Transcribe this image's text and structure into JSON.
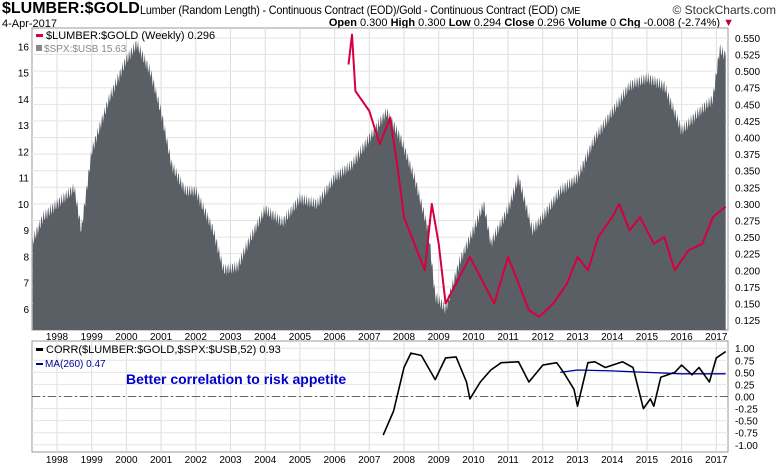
{
  "header": {
    "symbol": "$LUMBER:$GOLD",
    "description": "Lumber (Random Length) - Continuous Contract (EOD)/Gold - Continuous Contract (EOD)",
    "exchange": "CME",
    "brand": "© StockCharts.com",
    "date": "4-Apr-2017",
    "quote": {
      "open_label": "Open",
      "open": "0.300",
      "high_label": "High",
      "high": "0.300",
      "low_label": "Low",
      "low": "0.294",
      "close_label": "Close",
      "close": "0.296",
      "volume_label": "Volume",
      "volume": "0",
      "chg_label": "Chg",
      "chg": "-0.008 (-2.74%)"
    }
  },
  "colors": {
    "lumber": "#d6003f",
    "spx": "#5a5f66",
    "corr": "#000000",
    "ma": "#000099",
    "annotation": "#0000cc",
    "down": "#c00030"
  },
  "chart_data": [
    {
      "type": "area+line",
      "panel": "main",
      "legend": [
        {
          "name": "$LUMBER:$GOLD (Weekly) 0.296"
        },
        {
          "name": "$SPX:$USB 15.63"
        }
      ],
      "x_ticks": [
        "1998",
        "1999",
        "2000",
        "2001",
        "2002",
        "2003",
        "2004",
        "2005",
        "2006",
        "2007",
        "2008",
        "2009",
        "2010",
        "2011",
        "2012",
        "2013",
        "2014",
        "2015",
        "2016",
        "2017"
      ],
      "left_axis": {
        "ticks": [
          6,
          7,
          8,
          9,
          10,
          11,
          12,
          13,
          14,
          15,
          16
        ],
        "range": [
          5.2,
          16.7
        ]
      },
      "right_axis": {
        "ticks": [
          "0.125",
          "0.150",
          "0.175",
          "0.200",
          "0.225",
          "0.250",
          "0.275",
          "0.300",
          "0.325",
          "0.350",
          "0.375",
          "0.400",
          "0.425",
          "0.450",
          "0.475",
          "0.500",
          "0.525",
          "0.550"
        ],
        "range": [
          0.11,
          0.565
        ]
      },
      "series": [
        {
          "name": "$SPX:$USB",
          "axis": "left",
          "style": "area",
          "points": [
            [
              1997.3,
              8.6
            ],
            [
              1997.6,
              9.5
            ],
            [
              1998.0,
              10
            ],
            [
              1998.5,
              10.6
            ],
            [
              1998.7,
              9
            ],
            [
              1999.0,
              12
            ],
            [
              1999.5,
              14
            ],
            [
              2000.0,
              15.5
            ],
            [
              2000.3,
              16.1
            ],
            [
              2000.7,
              15
            ],
            [
              2001.0,
              13.5
            ],
            [
              2001.3,
              11.5
            ],
            [
              2001.7,
              10.5
            ],
            [
              2002.0,
              10.5
            ],
            [
              2002.5,
              9
            ],
            [
              2002.8,
              7.5
            ],
            [
              2003.2,
              7.6
            ],
            [
              2003.5,
              8.5
            ],
            [
              2004.0,
              9.8
            ],
            [
              2004.5,
              9.3
            ],
            [
              2005.0,
              10.2
            ],
            [
              2005.5,
              10
            ],
            [
              2006.0,
              11
            ],
            [
              2006.5,
              11.5
            ],
            [
              2007.0,
              12.5
            ],
            [
              2007.5,
              13.5
            ],
            [
              2007.9,
              12.5
            ],
            [
              2008.3,
              11
            ],
            [
              2008.7,
              9
            ],
            [
              2008.9,
              6.5
            ],
            [
              2009.2,
              6
            ],
            [
              2009.6,
              7.8
            ],
            [
              2010.0,
              9
            ],
            [
              2010.3,
              10
            ],
            [
              2010.5,
              8.5
            ],
            [
              2011.0,
              9.8
            ],
            [
              2011.3,
              11
            ],
            [
              2011.7,
              9
            ],
            [
              2012.0,
              9.5
            ],
            [
              2012.5,
              10.5
            ],
            [
              2013.0,
              11
            ],
            [
              2013.5,
              12.5
            ],
            [
              2014.0,
              13.5
            ],
            [
              2014.5,
              14.5
            ],
            [
              2015.0,
              14.8
            ],
            [
              2015.5,
              14.5
            ],
            [
              2016.0,
              12.8
            ],
            [
              2016.5,
              13.5
            ],
            [
              2016.9,
              14
            ],
            [
              2017.1,
              15.9
            ],
            [
              2017.27,
              15.63
            ]
          ]
        },
        {
          "name": "$LUMBER:$GOLD",
          "axis": "right",
          "style": "line",
          "points": [
            [
              2006.4,
              0.51
            ],
            [
              2006.5,
              0.555
            ],
            [
              2006.6,
              0.47
            ],
            [
              2007.0,
              0.44
            ],
            [
              2007.3,
              0.39
            ],
            [
              2007.6,
              0.43
            ],
            [
              2007.8,
              0.36
            ],
            [
              2008.0,
              0.28
            ],
            [
              2008.3,
              0.24
            ],
            [
              2008.6,
              0.2
            ],
            [
              2008.8,
              0.3
            ],
            [
              2009.0,
              0.24
            ],
            [
              2009.2,
              0.15
            ],
            [
              2009.5,
              0.18
            ],
            [
              2009.9,
              0.22
            ],
            [
              2010.3,
              0.18
            ],
            [
              2010.6,
              0.15
            ],
            [
              2011.0,
              0.22
            ],
            [
              2011.3,
              0.18
            ],
            [
              2011.6,
              0.14
            ],
            [
              2011.9,
              0.13
            ],
            [
              2012.3,
              0.15
            ],
            [
              2012.7,
              0.18
            ],
            [
              2013.0,
              0.22
            ],
            [
              2013.3,
              0.2
            ],
            [
              2013.6,
              0.25
            ],
            [
              2014.0,
              0.28
            ],
            [
              2014.2,
              0.3
            ],
            [
              2014.5,
              0.26
            ],
            [
              2014.8,
              0.28
            ],
            [
              2015.2,
              0.24
            ],
            [
              2015.5,
              0.25
            ],
            [
              2015.8,
              0.2
            ],
            [
              2016.2,
              0.23
            ],
            [
              2016.6,
              0.24
            ],
            [
              2016.9,
              0.28
            ],
            [
              2017.27,
              0.296
            ]
          ]
        }
      ]
    },
    {
      "type": "line",
      "panel": "indicator",
      "legend": [
        {
          "name": "CORR($LUMBER:$GOLD,$SPX:$USB,52) 0.93"
        },
        {
          "name": "MA(260) 0.47"
        }
      ],
      "annotation": "Better correlation to risk appetite",
      "y_ticks": [
        "1.00",
        "0.75",
        "0.50",
        "0.25",
        "0.00",
        "-0.25",
        "-0.50",
        "-0.75",
        "-1.00"
      ],
      "y_range": [
        -1.15,
        1.15
      ],
      "series": [
        {
          "name": "CORR",
          "points": [
            [
              2007.4,
              -0.8
            ],
            [
              2007.7,
              -0.3
            ],
            [
              2008.0,
              0.6
            ],
            [
              2008.2,
              0.9
            ],
            [
              2008.5,
              0.85
            ],
            [
              2008.9,
              0.35
            ],
            [
              2009.2,
              0.8
            ],
            [
              2009.5,
              0.82
            ],
            [
              2009.8,
              0.3
            ],
            [
              2009.9,
              -0.05
            ],
            [
              2010.2,
              0.3
            ],
            [
              2010.5,
              0.55
            ],
            [
              2010.8,
              0.7
            ],
            [
              2011.3,
              0.72
            ],
            [
              2011.6,
              0.3
            ],
            [
              2012.0,
              0.65
            ],
            [
              2012.4,
              0.7
            ],
            [
              2012.6,
              0.5
            ],
            [
              2012.9,
              0.15
            ],
            [
              2013.0,
              -0.2
            ],
            [
              2013.3,
              0.7
            ],
            [
              2013.5,
              0.72
            ],
            [
              2013.8,
              0.6
            ],
            [
              2014.3,
              0.72
            ],
            [
              2014.6,
              0.6
            ],
            [
              2014.9,
              -0.25
            ],
            [
              2015.1,
              -0.05
            ],
            [
              2015.2,
              -0.2
            ],
            [
              2015.4,
              0.4
            ],
            [
              2015.8,
              0.5
            ],
            [
              2016.0,
              0.65
            ],
            [
              2016.3,
              0.45
            ],
            [
              2016.5,
              0.6
            ],
            [
              2016.8,
              0.3
            ],
            [
              2017.0,
              0.8
            ],
            [
              2017.27,
              0.93
            ]
          ]
        },
        {
          "name": "MA",
          "points": [
            [
              2012.5,
              0.5
            ],
            [
              2013.0,
              0.55
            ],
            [
              2014.0,
              0.53
            ],
            [
              2015.0,
              0.5
            ],
            [
              2016.0,
              0.47
            ],
            [
              2017.27,
              0.47
            ]
          ]
        }
      ]
    }
  ]
}
